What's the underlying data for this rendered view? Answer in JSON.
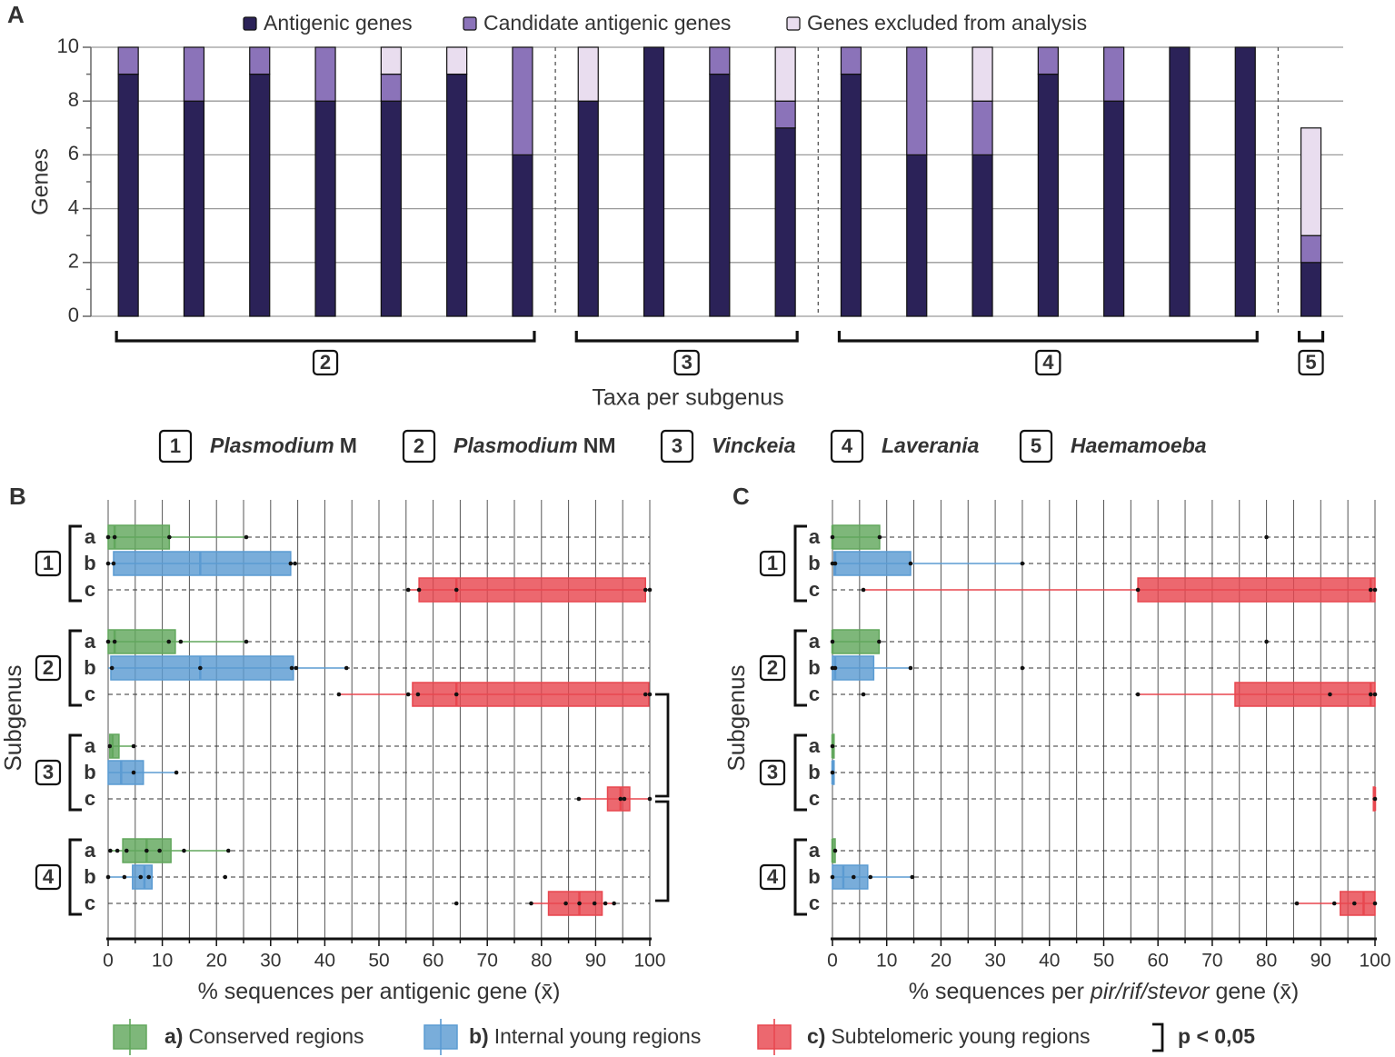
{
  "chart_data": [
    {
      "type": "bar",
      "stacked": true,
      "panel": "A",
      "ylabel": "Genes",
      "xlabel": "Taxa per subgenus",
      "ylim": [
        0,
        10
      ],
      "yticks": [
        0,
        2,
        4,
        6,
        8,
        10
      ],
      "yminor": [
        1,
        3,
        5,
        7,
        9
      ],
      "grid": true,
      "legend": "top",
      "categories": [
        null,
        null,
        null,
        null,
        null,
        null,
        null,
        null,
        null,
        null,
        null,
        null,
        null,
        null,
        null,
        null,
        null,
        null,
        null
      ],
      "groups": [
        {
          "label": "2",
          "count": 7
        },
        {
          "label": "3",
          "count": 4
        },
        {
          "label": "4",
          "count": 7
        },
        {
          "label": "5",
          "count": 1
        }
      ],
      "series": [
        {
          "name": "Antigenic genes",
          "color": "#2b2258",
          "values": [
            9,
            8,
            9,
            8,
            8,
            9,
            6,
            8,
            10,
            9,
            7,
            9,
            6,
            6,
            9,
            8,
            10,
            10,
            2
          ]
        },
        {
          "name": "Candidate antigenic genes",
          "color": "#8b73b9",
          "values": [
            1,
            2,
            1,
            2,
            1,
            0,
            4,
            0,
            0,
            1,
            1,
            1,
            4,
            2,
            1,
            2,
            0,
            0,
            1
          ]
        },
        {
          "name": "Genes excluded from analysis",
          "color": "#e9ddef",
          "values": [
            0,
            0,
            0,
            0,
            1,
            1,
            0,
            2,
            0,
            0,
            2,
            0,
            0,
            2,
            0,
            0,
            0,
            0,
            4
          ]
        }
      ]
    },
    {
      "type": "box",
      "panel": "B",
      "ylabel": "Subgenus",
      "xlabel": [
        {
          "text": "% sequences per antigenic gene (x̄)",
          "italic": false
        }
      ],
      "xlim": [
        0,
        100
      ],
      "xticks": [
        0,
        10,
        20,
        30,
        40,
        50,
        60,
        70,
        80,
        90,
        100
      ],
      "xminor": [
        5,
        15,
        25,
        35,
        45,
        55,
        65,
        75,
        85,
        95
      ],
      "groups": [
        {
          "label": "1",
          "rows": [
            "a",
            "b",
            "c"
          ],
          "boxes": [
            {
              "low": 0,
              "q1": 0,
              "median": 1.2,
              "q3": 11.3,
              "high": 25.5,
              "points": [
                0,
                1.2,
                11.3,
                25.5
              ]
            },
            {
              "low": 0,
              "q1": 1,
              "median": 17,
              "q3": 33.7,
              "high": 34.5,
              "points": [
                0,
                1,
                33.7,
                34.5
              ]
            },
            {
              "low": 55.4,
              "q1": 57.4,
              "median": 64.3,
              "q3": 99.2,
              "high": 100,
              "points": [
                55.4,
                57.4,
                64.3,
                99.2,
                100
              ]
            }
          ]
        },
        {
          "label": "2",
          "rows": [
            "a",
            "b",
            "c"
          ],
          "boxes": [
            {
              "low": 0,
              "q1": 0,
              "median": 1.2,
              "q3": 12.4,
              "high": 25.5,
              "points": [
                0,
                1.2,
                11.2,
                13.4,
                25.5
              ]
            },
            {
              "low": 0,
              "q1": 0.5,
              "median": 17,
              "q3": 34.2,
              "high": 44,
              "points": [
                0.7,
                17,
                33.9,
                34.7,
                44
              ]
            },
            {
              "low": 42.6,
              "q1": 56.2,
              "median": 64.3,
              "q3": 99.8,
              "high": 100,
              "points": [
                42.6,
                55.4,
                57.2,
                64.3,
                99.2,
                100
              ]
            }
          ]
        },
        {
          "label": "3",
          "rows": [
            "a",
            "b",
            "c"
          ],
          "boxes": [
            {
              "low": 0,
              "q1": 0.3,
              "median": 0.8,
              "q3": 2,
              "high": 4.7,
              "points": [
                0.3,
                4.7
              ]
            },
            {
              "low": 0,
              "q1": 0,
              "median": 2.4,
              "q3": 6.5,
              "high": 12.6,
              "points": [
                4.7,
                12.6
              ]
            },
            {
              "low": 86.9,
              "q1": 92.2,
              "median": 94.6,
              "q3": 96.3,
              "high": 100,
              "points": [
                86.9,
                94.6,
                95.3,
                100
              ]
            }
          ]
        },
        {
          "label": "4",
          "rows": [
            "a",
            "b",
            "c"
          ],
          "boxes": [
            {
              "low": 0.4,
              "q1": 2.7,
              "median": 7.1,
              "q3": 11.6,
              "high": 22.2,
              "points": [
                0.4,
                1.7,
                3.4,
                7.1,
                9.5,
                14,
                22.2
              ]
            },
            {
              "low": 0,
              "q1": 4.5,
              "median": 6.7,
              "q3": 8.1,
              "high": 8.1,
              "points": [
                0,
                3,
                6,
                7.5,
                21.6
              ]
            },
            {
              "low": 78.1,
              "q1": 81.3,
              "median": 87,
              "q3": 91.2,
              "high": 93.4,
              "points": [
                64.3,
                78.1,
                84.5,
                87,
                89.8,
                91.8,
                93.4
              ]
            }
          ]
        }
      ],
      "significant_pairs": [
        [
          [
            1,
            2
          ],
          [
            2,
            2
          ]
        ],
        [
          [
            2,
            2
          ],
          [
            3,
            2
          ]
        ]
      ]
    },
    {
      "type": "box",
      "panel": "C",
      "ylabel": "Subgenus",
      "xlabel": [
        {
          "text": "% sequences per ",
          "italic": false
        },
        {
          "text": "pir/rif/stevor",
          "italic": true
        },
        {
          "text": " gene (x̄)",
          "italic": false
        }
      ],
      "xlim": [
        0,
        100
      ],
      "xticks": [
        0,
        10,
        20,
        30,
        40,
        50,
        60,
        70,
        80,
        90,
        100
      ],
      "xminor": [
        5,
        15,
        25,
        35,
        45,
        55,
        65,
        75,
        85,
        95
      ],
      "groups": [
        {
          "label": "1",
          "rows": [
            "a",
            "b",
            "c"
          ],
          "boxes": [
            {
              "low": 0,
              "q1": 0,
              "median": 0,
              "q3": 8.7,
              "high": 8.7,
              "points": [
                0,
                8.7,
                80
              ]
            },
            {
              "low": 0,
              "q1": 0.3,
              "median": 0.5,
              "q3": 14.4,
              "high": 35,
              "points": [
                0,
                0.5,
                14.4,
                35
              ]
            },
            {
              "low": 5.7,
              "q1": 56.3,
              "median": 99.2,
              "q3": 100,
              "high": 100,
              "points": [
                5.7,
                56.3,
                99.2,
                100
              ]
            }
          ]
        },
        {
          "label": "2",
          "rows": [
            "a",
            "b",
            "c"
          ],
          "boxes": [
            {
              "low": 0,
              "q1": 0,
              "median": 0,
              "q3": 8.6,
              "high": 8.6,
              "points": [
                0,
                8.6,
                80
              ]
            },
            {
              "low": 0,
              "q1": 0,
              "median": 0.5,
              "q3": 7.6,
              "high": 14.4,
              "points": [
                0,
                0.5,
                14.4,
                35
              ]
            },
            {
              "low": 56.3,
              "q1": 74.2,
              "median": 99.2,
              "q3": 100,
              "high": 100,
              "points": [
                5.7,
                56.3,
                91.7,
                99.2,
                100
              ]
            }
          ]
        },
        {
          "label": "3",
          "rows": [
            "a",
            "b",
            "c"
          ],
          "boxes": [
            {
              "low": 0,
              "q1": 0,
              "median": 0,
              "q3": 0.3,
              "high": 0.3,
              "points": [
                0
              ]
            },
            {
              "low": 0,
              "q1": 0,
              "median": 0,
              "q3": 0.3,
              "high": 0.3,
              "points": [
                0
              ]
            },
            {
              "low": 99.7,
              "q1": 99.7,
              "median": 100,
              "q3": 100,
              "high": 100,
              "points": [
                100
              ]
            }
          ]
        },
        {
          "label": "4",
          "rows": [
            "a",
            "b",
            "c"
          ],
          "boxes": [
            {
              "low": 0,
              "q1": 0,
              "median": 0,
              "q3": 0.5,
              "high": 0.5,
              "points": [
                0.5
              ]
            },
            {
              "low": 0,
              "q1": 0,
              "median": 2,
              "q3": 6.5,
              "high": 14.7,
              "points": [
                0,
                3.9,
                7,
                14.7
              ]
            },
            {
              "low": 85.6,
              "q1": 93.6,
              "median": 97.9,
              "q3": 100,
              "high": 100,
              "points": [
                85.6,
                92.5,
                96.2,
                100
              ]
            }
          ]
        }
      ],
      "significant_pairs": []
    }
  ],
  "subgenus_legend": [
    {
      "number": "1",
      "name": "Plasmodium",
      "qualifier": "M"
    },
    {
      "number": "2",
      "name": "Plasmodium",
      "qualifier": "NM"
    },
    {
      "number": "3",
      "name": "Vinckeia"
    },
    {
      "number": "4",
      "name": "Laverania"
    },
    {
      "number": "5",
      "name": "Haemamoeba"
    }
  ],
  "box_legend": [
    {
      "key": "a)",
      "name": "Conserved regions",
      "color": "#62a75d"
    },
    {
      "key": "b)",
      "name": "Internal young regions",
      "color": "#5b9bd2"
    },
    {
      "key": "c)",
      "name": "Subtelomeric young regions",
      "color": "#e8474f"
    }
  ],
  "significance_legend": "p < 0,05"
}
